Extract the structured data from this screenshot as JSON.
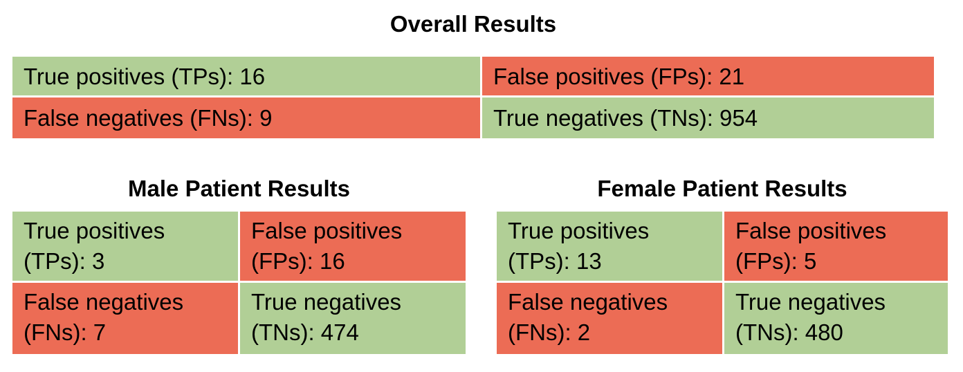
{
  "overall": {
    "title": "Overall Results",
    "tp": "True positives (TPs): 16",
    "fp": "False positives (FPs): 21",
    "fn": "False negatives (FNs): 9",
    "tn": "True negatives (TNs): 954"
  },
  "male": {
    "title": "Male Patient Results",
    "tp_l1": "True positives",
    "tp_l2": "(TPs): 3",
    "fp_l1": "False positives",
    "fp_l2": "(FPs): 16",
    "fn_l1": "False negatives",
    "fn_l2": "(FNs): 7",
    "tn_l1": "True negatives",
    "tn_l2": "(TNs): 474"
  },
  "female": {
    "title": "Female Patient Results",
    "tp_l1": "True positives",
    "tp_l2": "(TPs): 13",
    "fp_l1": "False positives",
    "fp_l2": "(FPs): 5",
    "fn_l1": "False negatives",
    "fn_l2": "(FNs): 2",
    "tn_l1": "True negatives",
    "tn_l2": "(TNs): 480"
  },
  "colors": {
    "correct": "#b1cf96",
    "incorrect": "#ec6c55"
  }
}
